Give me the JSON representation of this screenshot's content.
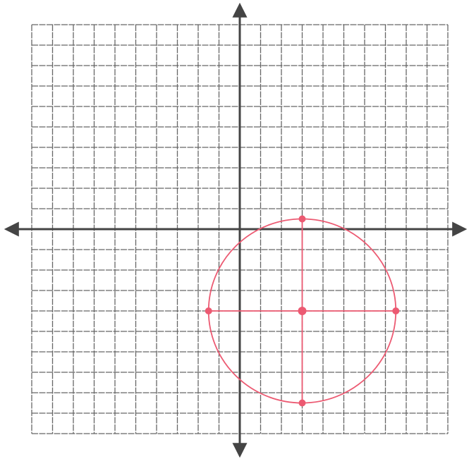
{
  "chart_data": {
    "type": "circle",
    "center": {
      "x": 3,
      "y": -4
    },
    "radius": 4.5,
    "color": "#ec5a72",
    "xlim": [
      -10,
      10
    ],
    "ylim": [
      -10,
      10
    ],
    "xticks": [
      -10,
      -9,
      -8,
      -7,
      -6,
      -5,
      -4,
      -3,
      -2,
      -1,
      0,
      1,
      2,
      3,
      4,
      5,
      6,
      7,
      8,
      9,
      10
    ],
    "yticks": [
      -10,
      -9,
      -8,
      -7,
      -6,
      -5,
      -4,
      -3,
      -2,
      -1,
      0,
      1,
      2,
      3,
      4,
      5,
      6,
      7,
      8,
      9,
      10
    ],
    "grid": true
  }
}
